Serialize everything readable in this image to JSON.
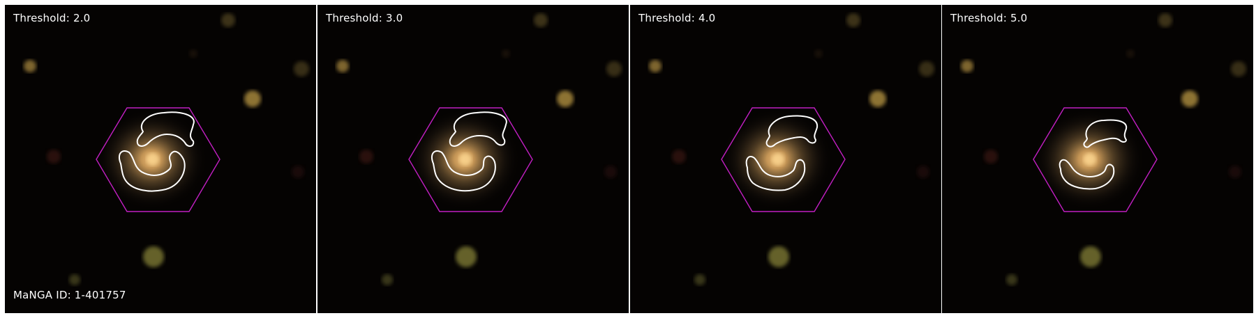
{
  "panels": [
    {
      "threshold_label": "Threshold: 2.0"
    },
    {
      "threshold_label": "Threshold: 3.0"
    },
    {
      "threshold_label": "Threshold: 4.0"
    },
    {
      "threshold_label": "Threshold: 5.0"
    }
  ],
  "manga_id_label": "MaNGA ID: 1-401757",
  "colors": {
    "hexagon": "#c21fc2",
    "contour": "#ffffff",
    "galaxy_core": "#f2c07a",
    "background": "#050302"
  }
}
